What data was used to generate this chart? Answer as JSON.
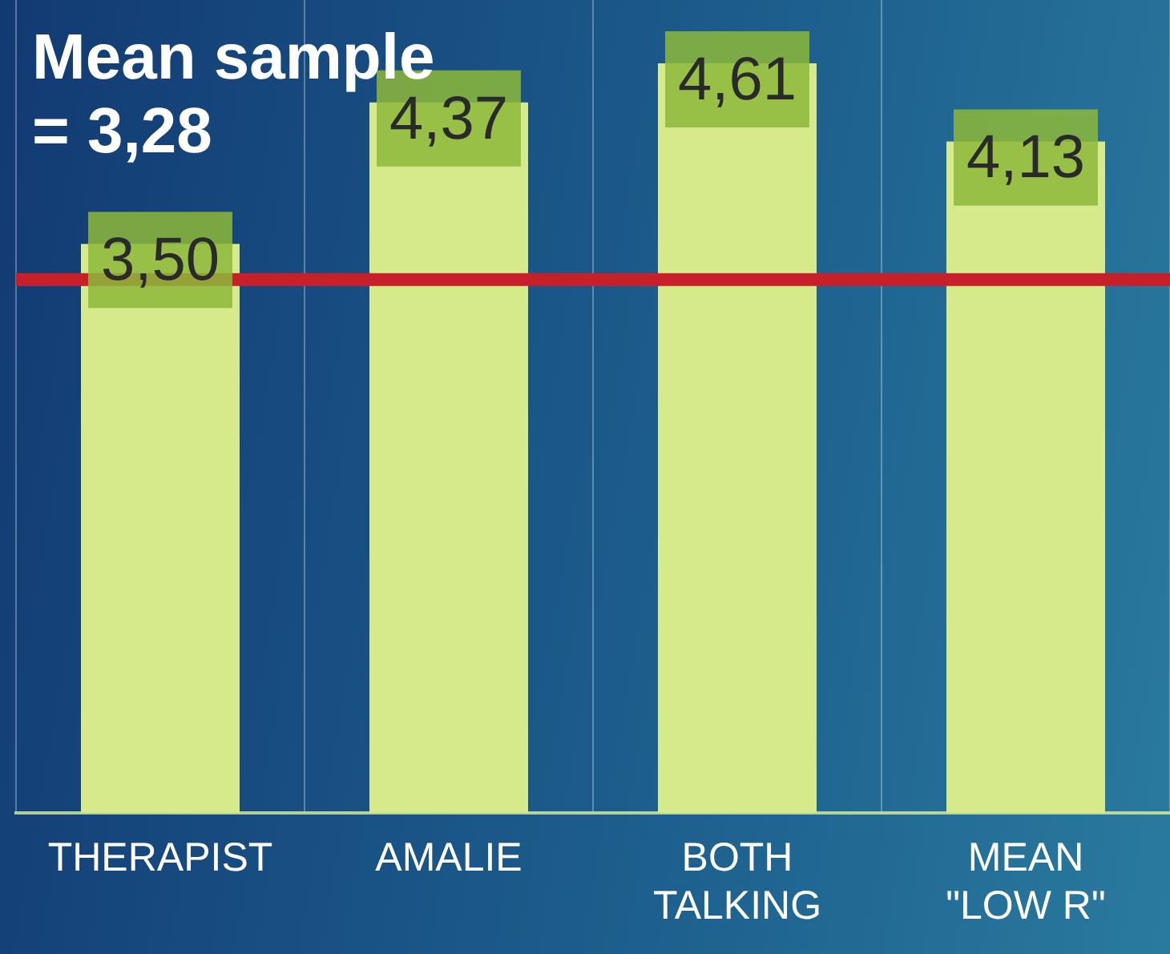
{
  "chart_data": {
    "type": "bar",
    "categories": [
      "THERAPIST",
      "AMALIE",
      "BOTH TALKING",
      "MEAN \"LOW R\""
    ],
    "values": [
      3.5,
      4.37,
      4.61,
      4.13
    ],
    "value_labels": [
      "3,50",
      "4,37",
      "4,61",
      "4,13"
    ],
    "color": "#d6ea8c",
    "grid": "x",
    "ref_lines": [
      {
        "axis": "y",
        "value": 3.28,
        "label": "Mean sample = 3,28",
        "color": "#c8202a"
      }
    ]
  }
}
